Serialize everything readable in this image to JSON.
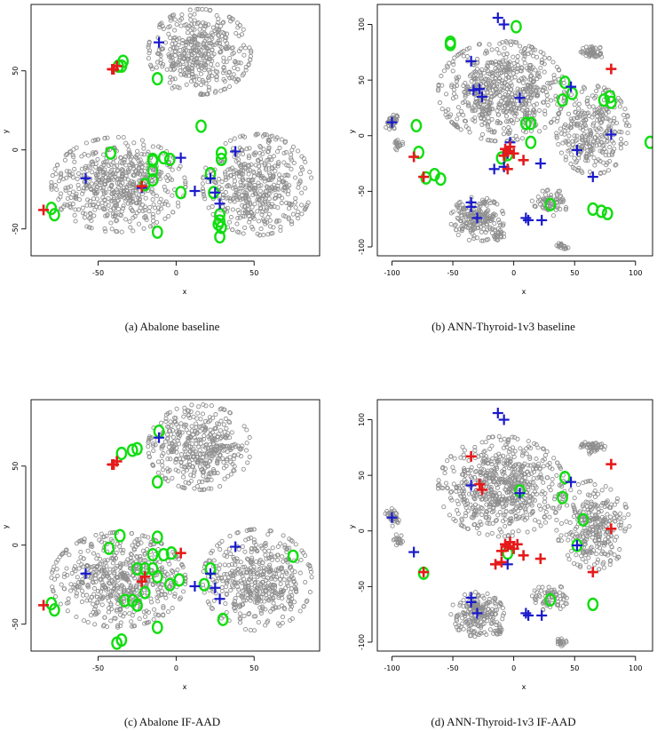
{
  "figure": {
    "panels": [
      {
        "id": "a",
        "caption": "(a) Abalone baseline",
        "xlabel": "x",
        "ylabel": "y"
      },
      {
        "id": "b",
        "caption": "(b) ANN-Thyroid-1v3 baseline",
        "xlabel": "x",
        "ylabel": "y"
      },
      {
        "id": "c",
        "caption": "(c) Abalone IF-AAD",
        "xlabel": "x",
        "ylabel": "y"
      },
      {
        "id": "d",
        "caption": "(d) ANN-Thyroid-1v3 IF-AAD",
        "xlabel": "x",
        "ylabel": "y"
      }
    ]
  },
  "colors": {
    "background_points": "#8f8f8f",
    "queried_ring": "#11dd11",
    "true_anomaly_blue": "#1a1acc",
    "true_anomaly_red": "#e61a1a"
  },
  "chart_data": [
    {
      "panel": "a",
      "type": "scatter",
      "title": "(a) Abalone baseline",
      "xlabel": "x",
      "ylabel": "y",
      "xlim": [
        -93,
        92
      ],
      "ylim": [
        -67,
        92
      ],
      "xticks": [
        -50,
        0,
        50
      ],
      "yticks": [
        -50,
        0,
        50
      ],
      "clusters": [
        {
          "cx": 15,
          "cy": 62,
          "rx": 33,
          "ry": 27,
          "n": 420
        },
        {
          "cx": -37,
          "cy": -22,
          "rx": 43,
          "ry": 30,
          "n": 560
        },
        {
          "cx": 52,
          "cy": -22,
          "rx": 35,
          "ry": 32,
          "n": 460
        }
      ],
      "blue_plus": [
        [
          -11,
          68
        ],
        [
          -58,
          -18
        ],
        [
          3,
          -5
        ],
        [
          -22,
          -24
        ],
        [
          12,
          -26
        ],
        [
          22,
          -18
        ],
        [
          25,
          -27
        ],
        [
          28,
          -34
        ],
        [
          38,
          -1
        ]
      ],
      "red_plus": [
        [
          -40,
          51
        ],
        [
          -41,
          51
        ],
        [
          -38,
          53
        ],
        [
          -85,
          -38
        ],
        [
          -22,
          -23
        ]
      ],
      "green_rings": [
        [
          -34,
          56
        ],
        [
          -35,
          53
        ],
        [
          -37,
          53
        ],
        [
          -12,
          45
        ],
        [
          -42,
          -2
        ],
        [
          -15,
          -6
        ],
        [
          -8,
          -5
        ],
        [
          -4,
          -6
        ],
        [
          -15,
          -13
        ],
        [
          -15,
          -19
        ],
        [
          -20,
          -22
        ],
        [
          -15,
          -7
        ],
        [
          3,
          -27
        ],
        [
          -12,
          -52
        ],
        [
          -80,
          -37
        ],
        [
          -78,
          -41
        ],
        [
          16,
          15
        ],
        [
          22,
          -15
        ],
        [
          24,
          -27
        ],
        [
          29,
          -2
        ],
        [
          29,
          -6
        ],
        [
          28,
          -41
        ],
        [
          28,
          -45
        ],
        [
          27,
          -47
        ],
        [
          29,
          -49
        ],
        [
          28,
          -55
        ]
      ]
    },
    {
      "panel": "b",
      "type": "scatter",
      "title": "(b) ANN-Thyroid-1v3 baseline",
      "xlabel": "x",
      "ylabel": "y",
      "xlim": [
        -112,
        114
      ],
      "ylim": [
        -108,
        118
      ],
      "xticks": [
        -100,
        -50,
        0,
        50,
        100
      ],
      "yticks": [
        -100,
        -50,
        0,
        50,
        100
      ],
      "clusters": [
        {
          "cx": -10,
          "cy": 40,
          "rx": 52,
          "ry": 45,
          "n": 650
        },
        {
          "cx": 65,
          "cy": 5,
          "rx": 30,
          "ry": 40,
          "n": 300
        },
        {
          "cx": 65,
          "cy": 75,
          "rx": 10,
          "ry": 6,
          "n": 50
        },
        {
          "cx": -30,
          "cy": -75,
          "rx": 22,
          "ry": 20,
          "n": 200
        },
        {
          "cx": 30,
          "cy": -60,
          "rx": 15,
          "ry": 12,
          "n": 70
        },
        {
          "cx": -100,
          "cy": 12,
          "rx": 6,
          "ry": 8,
          "n": 40
        },
        {
          "cx": -95,
          "cy": -8,
          "rx": 4,
          "ry": 5,
          "n": 20
        },
        {
          "cx": 40,
          "cy": -100,
          "rx": 5,
          "ry": 4,
          "n": 20
        },
        {
          "cx": -13,
          "cy": -90,
          "rx": 5,
          "ry": 6,
          "n": 20
        }
      ],
      "blue_plus": [
        [
          -13,
          106
        ],
        [
          -8,
          100
        ],
        [
          -35,
          67
        ],
        [
          -33,
          41
        ],
        [
          -28,
          42
        ],
        [
          -26,
          35
        ],
        [
          5,
          34
        ],
        [
          47,
          44
        ],
        [
          80,
          1
        ],
        [
          -3,
          -6
        ],
        [
          -5,
          -16
        ],
        [
          -16,
          -30
        ],
        [
          -8,
          -28
        ],
        [
          22,
          -25
        ],
        [
          52,
          -13
        ],
        [
          -35,
          -60
        ],
        [
          -35,
          -64
        ],
        [
          -30,
          -74
        ],
        [
          10,
          -74
        ],
        [
          12,
          -76
        ],
        [
          23,
          -76
        ],
        [
          -100,
          12
        ],
        [
          65,
          -37
        ]
      ],
      "red_plus": [
        [
          -82,
          -19
        ],
        [
          -74,
          -37
        ],
        [
          -7,
          -12
        ],
        [
          -5,
          -14
        ],
        [
          -3,
          -10
        ],
        [
          -8,
          -18
        ],
        [
          0,
          -16
        ],
        [
          8,
          -22
        ],
        [
          -5,
          -30
        ],
        [
          80,
          60
        ]
      ],
      "green_rings": [
        [
          2,
          98
        ],
        [
          -52,
          84
        ],
        [
          -52,
          82
        ],
        [
          -80,
          9
        ],
        [
          -78,
          -15
        ],
        [
          -60,
          -39
        ],
        [
          -65,
          -35
        ],
        [
          -72,
          -38
        ],
        [
          10,
          11
        ],
        [
          14,
          11
        ],
        [
          42,
          48
        ],
        [
          48,
          38
        ],
        [
          40,
          32
        ],
        [
          74,
          32
        ],
        [
          80,
          30
        ],
        [
          79,
          35
        ],
        [
          112,
          -6
        ],
        [
          14,
          -6
        ],
        [
          30,
          -62
        ],
        [
          65,
          -66
        ],
        [
          72,
          -68
        ],
        [
          77,
          -70
        ],
        [
          -5,
          -17
        ],
        [
          -10,
          -20
        ]
      ]
    },
    {
      "panel": "c",
      "type": "scatter",
      "title": "(c) Abalone IF-AAD",
      "xlabel": "x",
      "ylabel": "y",
      "xlim": [
        -93,
        92
      ],
      "ylim": [
        -67,
        92
      ],
      "xticks": [
        -50,
        0,
        50
      ],
      "yticks": [
        -50,
        0,
        50
      ],
      "clusters": [
        {
          "cx": 15,
          "cy": 62,
          "rx": 33,
          "ry": 27,
          "n": 420
        },
        {
          "cx": -37,
          "cy": -22,
          "rx": 43,
          "ry": 30,
          "n": 560
        },
        {
          "cx": 52,
          "cy": -22,
          "rx": 35,
          "ry": 32,
          "n": 460
        }
      ],
      "blue_plus": [
        [
          -11,
          68
        ],
        [
          -58,
          -18
        ],
        [
          12,
          -26
        ],
        [
          22,
          -18
        ],
        [
          25,
          -27
        ],
        [
          28,
          -34
        ],
        [
          38,
          -1
        ]
      ],
      "red_plus": [
        [
          -40,
          51
        ],
        [
          -41,
          51
        ],
        [
          -38,
          53
        ],
        [
          -85,
          -38
        ],
        [
          -22,
          -23
        ],
        [
          -20,
          -20
        ],
        [
          3,
          -5
        ]
      ],
      "green_rings": [
        [
          -35,
          58
        ],
        [
          -28,
          60
        ],
        [
          -25,
          61
        ],
        [
          -11,
          72
        ],
        [
          -12,
          40
        ],
        [
          -36,
          6
        ],
        [
          -12,
          5
        ],
        [
          -43,
          -2
        ],
        [
          -15,
          -6
        ],
        [
          -8,
          -6
        ],
        [
          -3,
          -5
        ],
        [
          -25,
          -15
        ],
        [
          -20,
          -15
        ],
        [
          -15,
          -15
        ],
        [
          -12,
          -20
        ],
        [
          -20,
          -30
        ],
        [
          -28,
          -35
        ],
        [
          -25,
          -38
        ],
        [
          -33,
          -35
        ],
        [
          -4,
          -25
        ],
        [
          2,
          -22
        ],
        [
          -12,
          -52
        ],
        [
          -80,
          -37
        ],
        [
          -78,
          -41
        ],
        [
          -35,
          -60
        ],
        [
          -38,
          -62
        ],
        [
          22,
          -15
        ],
        [
          18,
          -25
        ],
        [
          30,
          -47
        ],
        [
          75,
          -7
        ]
      ]
    },
    {
      "panel": "d",
      "type": "scatter",
      "title": "(d) ANN-Thyroid-1v3 IF-AAD",
      "xlabel": "x",
      "ylabel": "y",
      "xlim": [
        -112,
        114
      ],
      "ylim": [
        -108,
        118
      ],
      "xticks": [
        -100,
        -50,
        0,
        50,
        100
      ],
      "yticks": [
        -100,
        -50,
        0,
        50,
        100
      ],
      "clusters": [
        {
          "cx": -10,
          "cy": 40,
          "rx": 52,
          "ry": 45,
          "n": 650
        },
        {
          "cx": 65,
          "cy": 5,
          "rx": 30,
          "ry": 40,
          "n": 300
        },
        {
          "cx": 65,
          "cy": 75,
          "rx": 10,
          "ry": 6,
          "n": 50
        },
        {
          "cx": -30,
          "cy": -75,
          "rx": 22,
          "ry": 20,
          "n": 200
        },
        {
          "cx": 30,
          "cy": -60,
          "rx": 15,
          "ry": 12,
          "n": 70
        },
        {
          "cx": -100,
          "cy": 12,
          "rx": 6,
          "ry": 8,
          "n": 40
        },
        {
          "cx": -95,
          "cy": -8,
          "rx": 4,
          "ry": 5,
          "n": 20
        },
        {
          "cx": 40,
          "cy": -100,
          "rx": 5,
          "ry": 4,
          "n": 20
        },
        {
          "cx": -13,
          "cy": -90,
          "rx": 5,
          "ry": 6,
          "n": 20
        }
      ],
      "blue_plus": [
        [
          -13,
          106
        ],
        [
          -8,
          100
        ],
        [
          -35,
          41
        ],
        [
          5,
          34
        ],
        [
          47,
          44
        ],
        [
          -100,
          12
        ],
        [
          -82,
          -19
        ],
        [
          -5,
          -30
        ],
        [
          52,
          -13
        ],
        [
          -35,
          -60
        ],
        [
          -35,
          -64
        ],
        [
          -30,
          -74
        ],
        [
          10,
          -74
        ],
        [
          12,
          -76
        ],
        [
          23,
          -76
        ]
      ],
      "red_plus": [
        [
          -35,
          67
        ],
        [
          -28,
          42
        ],
        [
          -26,
          37
        ],
        [
          -74,
          -37
        ],
        [
          -7,
          -12
        ],
        [
          -5,
          -14
        ],
        [
          -3,
          -10
        ],
        [
          0,
          -16
        ],
        [
          3,
          -12
        ],
        [
          8,
          -22
        ],
        [
          -10,
          -18
        ],
        [
          -15,
          -30
        ],
        [
          -10,
          -28
        ],
        [
          22,
          -25
        ],
        [
          65,
          -37
        ],
        [
          80,
          60
        ],
        [
          80,
          2
        ]
      ],
      "green_rings": [
        [
          5,
          36
        ],
        [
          42,
          48
        ],
        [
          40,
          30
        ],
        [
          57,
          10
        ],
        [
          52,
          -13
        ],
        [
          -5,
          -20
        ],
        [
          -74,
          -38
        ],
        [
          30,
          -62
        ],
        [
          65,
          -66
        ]
      ]
    }
  ]
}
